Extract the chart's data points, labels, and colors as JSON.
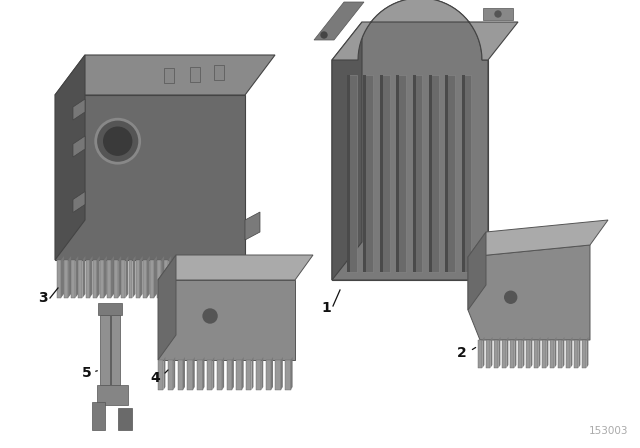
{
  "background_color": "#ffffff",
  "diagram_number": "153003",
  "figsize": [
    6.4,
    4.48
  ],
  "dpi": 100,
  "gray_dark": "#636363",
  "gray_mid": "#787878",
  "gray_light": "#a0a0a0",
  "gray_top": "#909090",
  "gray_right": "#555555",
  "gray_tooth": "#888888",
  "gray_tooth_light": "#b0b0b0",
  "label_color": "#111111"
}
